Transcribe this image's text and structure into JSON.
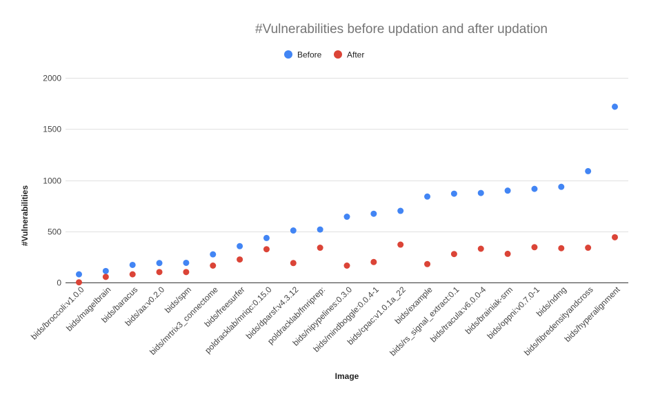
{
  "chart_data": {
    "type": "scatter",
    "title": "#Vulnerabilities before updation and after updation",
    "xlabel": "Image",
    "ylabel": "#Vulnerabilities",
    "ylim": [
      0,
      2000
    ],
    "yticks": [
      "0",
      "500",
      "1000",
      "1500",
      "2000"
    ],
    "grid": true,
    "legend_position": "top",
    "categories": [
      "bids/broccoli:v1.0.0",
      "bids/mageIbrain",
      "bids/baracus",
      "bids/aa:v0.2.0",
      "bids/spm",
      "bids/mrtrix3_connectome",
      "bids/freesurfer",
      "poldracklab/mriqc:0.15.0",
      "bids/dparsf:v4.3.12",
      "poldracklab/fmriprep:",
      "bids/nipypelines:0.3.0",
      "bids/mindboggle:0.0.4-1",
      "bids/cpac:v1.0.1a_22",
      "bids/example",
      "bids/rs_signal_extract:0.1",
      "bids/tracula:v6.0.0-4",
      "bids/brainiak-srm",
      "bids/oppni:v0.7.0-1",
      "bids/ndmg",
      "bids/fibredensityandcross",
      "bids/hyperalignment"
    ],
    "series": [
      {
        "name": "Before",
        "color": "#4285f4",
        "values": [
          80,
          112,
          172,
          190,
          192,
          275,
          355,
          435,
          508,
          518,
          643,
          672,
          700,
          840,
          868,
          875,
          898,
          915,
          935,
          1088,
          1718
        ]
      },
      {
        "name": "After",
        "color": "#db4437",
        "values": [
          2,
          55,
          80,
          102,
          102,
          165,
          225,
          325,
          190,
          340,
          165,
          200,
          370,
          180,
          278,
          330,
          280,
          345,
          335,
          340,
          442
        ]
      }
    ]
  }
}
